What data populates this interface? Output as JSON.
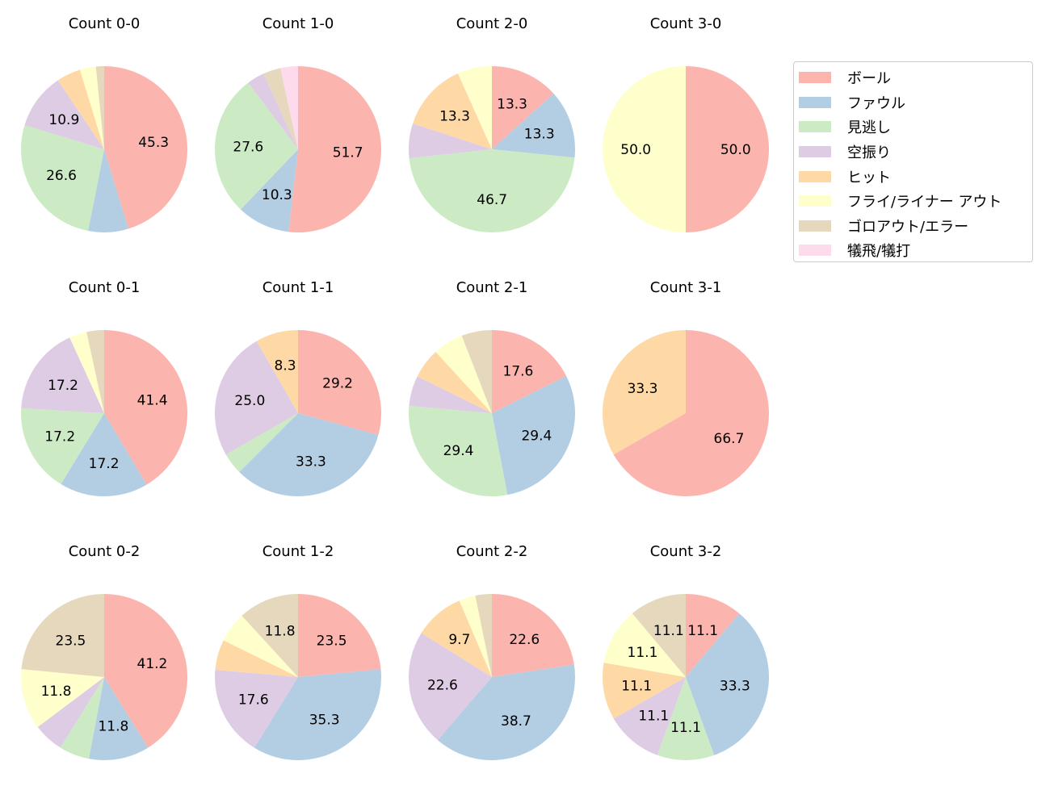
{
  "chart_data": {
    "type": "pie",
    "categories": [
      "ボール",
      "ファウル",
      "見逃し",
      "空振り",
      "ヒット",
      "フライ/ライナー アウト",
      "ゴロアウト/エラー",
      "犠飛/犠打"
    ],
    "colors": [
      "#fbb4ae",
      "#b3cde3",
      "#ccebc5",
      "#decbe4",
      "#fed9a6",
      "#ffffcc",
      "#e5d8bd",
      "#fddaec"
    ],
    "start_angle": 90,
    "direction": "clockwise",
    "legend_position": "top-right",
    "pies": [
      {
        "title": "Count 0-0",
        "values": [
          45.3,
          7.8,
          26.6,
          10.9,
          4.7,
          3.1,
          1.6,
          0
        ]
      },
      {
        "title": "Count 1-0",
        "values": [
          51.7,
          10.3,
          27.6,
          3.4,
          0,
          0,
          3.4,
          3.4
        ]
      },
      {
        "title": "Count 2-0",
        "values": [
          13.3,
          13.3,
          46.7,
          6.7,
          13.3,
          6.7,
          0,
          0
        ]
      },
      {
        "title": "Count 3-0",
        "values": [
          50.0,
          0,
          0,
          0,
          0,
          50.0,
          0,
          0
        ]
      },
      {
        "title": "Count 0-1",
        "values": [
          41.4,
          17.2,
          17.2,
          17.2,
          0,
          3.4,
          3.4,
          0
        ]
      },
      {
        "title": "Count 1-1",
        "values": [
          29.2,
          33.3,
          4.2,
          25.0,
          8.3,
          0,
          0,
          0
        ]
      },
      {
        "title": "Count 2-1",
        "values": [
          17.6,
          29.4,
          29.4,
          5.9,
          5.9,
          5.9,
          5.9,
          0
        ]
      },
      {
        "title": "Count 3-1",
        "values": [
          66.7,
          0,
          0,
          0,
          33.3,
          0,
          0,
          0
        ]
      },
      {
        "title": "Count 0-2",
        "values": [
          41.2,
          11.8,
          5.9,
          5.9,
          0,
          11.8,
          23.5,
          0
        ]
      },
      {
        "title": "Count 1-2",
        "values": [
          23.5,
          35.3,
          0,
          17.6,
          5.9,
          5.9,
          11.8,
          0
        ]
      },
      {
        "title": "Count 2-2",
        "values": [
          22.6,
          38.7,
          0,
          22.6,
          9.7,
          3.2,
          3.2,
          0
        ]
      },
      {
        "title": "Count 3-2",
        "values": [
          11.1,
          33.3,
          11.1,
          11.1,
          11.1,
          11.1,
          11.1,
          0
        ]
      }
    ]
  }
}
